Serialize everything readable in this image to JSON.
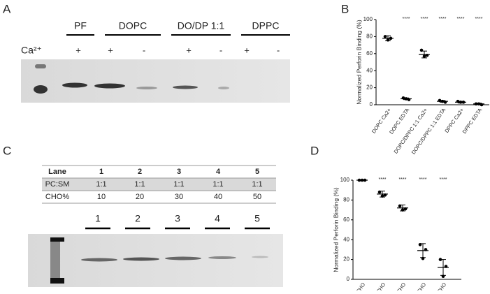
{
  "panel_labels": [
    "A",
    "B",
    "C",
    "D"
  ],
  "gel_a": {
    "groups": [
      "PF",
      "DOPC",
      "DO/DP 1:1",
      "DPPC"
    ],
    "ion": "Ca²⁺",
    "signs": [
      "+",
      "+",
      "-",
      "+",
      "-",
      "+",
      "-"
    ]
  },
  "table_c": {
    "rows": [
      [
        "Lane",
        "1",
        "2",
        "3",
        "4",
        "5"
      ],
      [
        "PC:SM",
        "1:1",
        "1:1",
        "1:1",
        "1:1",
        "1:1"
      ],
      [
        "CHO%",
        "10",
        "20",
        "30",
        "40",
        "50"
      ]
    ]
  },
  "gel_c": {
    "lanes": [
      "1",
      "2",
      "3",
      "4",
      "5"
    ]
  },
  "chart_data": [
    {
      "type": "dot",
      "ylabel": "Normalized Perforin Binding (%)",
      "categories": [
        "DOPC Ca2+",
        "DOPC EDTA",
        "DOPC/DPPC 1:1 Ca2+",
        "DOPC/DPPC 1:1 EDTA",
        "DPPC Ca2+",
        "DPPC EDTA"
      ],
      "points": [
        [
          80,
          76,
          78
        ],
        [
          8,
          7,
          6
        ],
        [
          64,
          57,
          58
        ],
        [
          5,
          4,
          3
        ],
        [
          4,
          3,
          3
        ],
        [
          1,
          1,
          0
        ]
      ],
      "mean": [
        78,
        7,
        59,
        4,
        3,
        1
      ],
      "error": [
        3,
        1,
        4,
        1,
        1,
        1
      ],
      "significance": [
        null,
        "****",
        "****",
        "****",
        "****",
        "****"
      ],
      "ylim": [
        0,
        100
      ],
      "yticks": [
        0,
        20,
        40,
        60,
        80,
        100
      ],
      "color": "#000000"
    },
    {
      "type": "dot",
      "ylabel": "Normalized Perforin Binding (%)",
      "categories": [
        "10% CHO",
        "20% CHO",
        "30% CHO",
        "40% CHO",
        "50% CHO"
      ],
      "points": [
        [
          100,
          100,
          100
        ],
        [
          88,
          84,
          85
        ],
        [
          74,
          70,
          71
        ],
        [
          35,
          21,
          30
        ],
        [
          20,
          3,
          13
        ]
      ],
      "mean": [
        100,
        86,
        72,
        29,
        12
      ],
      "error": [
        0,
        3,
        3,
        7,
        8
      ],
      "significance": [
        null,
        "****",
        "****",
        "****",
        "****"
      ],
      "ylim": [
        0,
        100
      ],
      "yticks": [
        0,
        20,
        40,
        60,
        80,
        100
      ],
      "color": "#000000"
    }
  ]
}
